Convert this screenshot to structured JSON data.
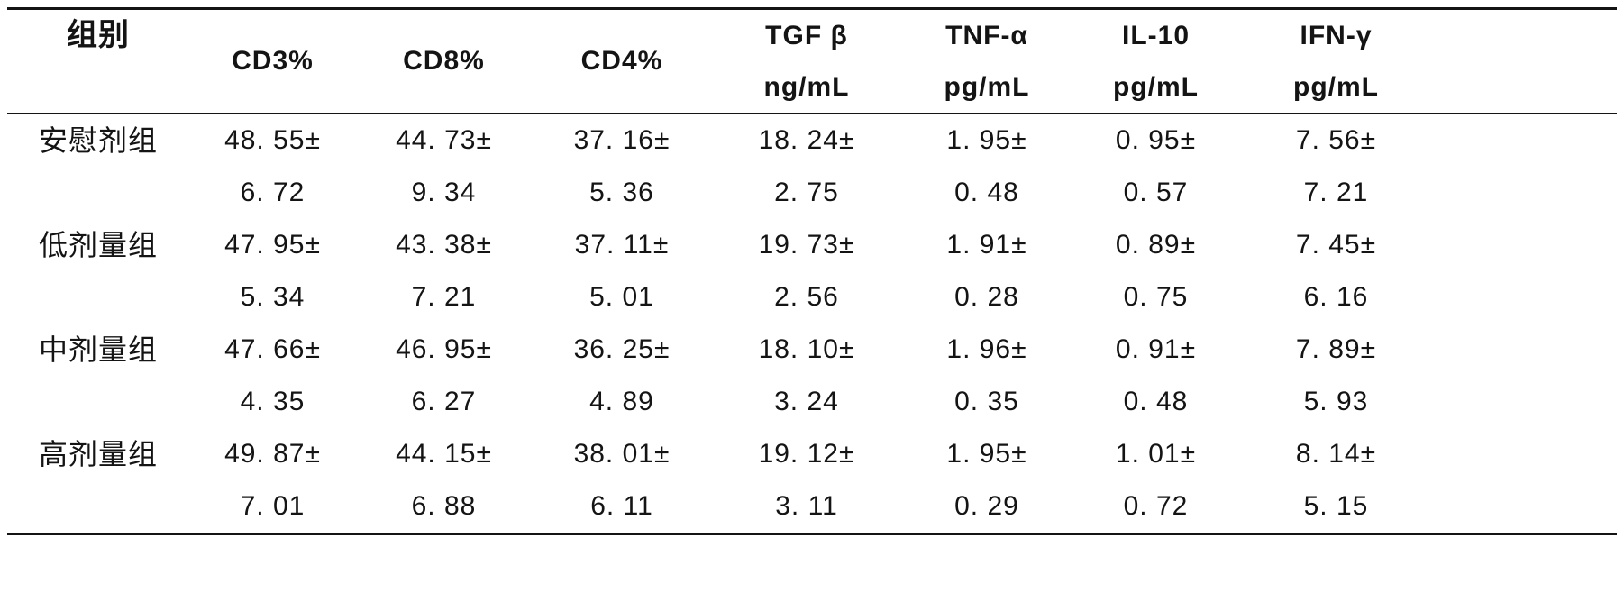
{
  "table": {
    "columns": [
      {
        "key": "group",
        "line1": "组别",
        "line2": ""
      },
      {
        "key": "cd3",
        "line1": "CD3%",
        "line2": ""
      },
      {
        "key": "cd8",
        "line1": "CD8%",
        "line2": ""
      },
      {
        "key": "cd4",
        "line1": "CD4%",
        "line2": ""
      },
      {
        "key": "tgfb",
        "line1": "TGF β",
        "line2": "ng/mL"
      },
      {
        "key": "tnfa",
        "line1": "TNF-α",
        "line2": "pg/mL"
      },
      {
        "key": "il10",
        "line1": "IL-10",
        "line2": "pg/mL"
      },
      {
        "key": "ifng",
        "line1": "IFN-γ",
        "line2": "pg/mL"
      }
    ],
    "rows": [
      {
        "group": "安慰剂组",
        "values": [
          {
            "mean": "48. 55±",
            "sd": "6. 72"
          },
          {
            "mean": "44. 73±",
            "sd": "9. 34"
          },
          {
            "mean": "37. 16±",
            "sd": "5. 36"
          },
          {
            "mean": "18. 24±",
            "sd": "2. 75"
          },
          {
            "mean": "1. 95±",
            "sd": "0. 48"
          },
          {
            "mean": "0. 95±",
            "sd": "0. 57"
          },
          {
            "mean": "7. 56±",
            "sd": "7. 21"
          }
        ]
      },
      {
        "group": "低剂量组",
        "values": [
          {
            "mean": "47. 95±",
            "sd": "5. 34"
          },
          {
            "mean": "43. 38±",
            "sd": "7. 21"
          },
          {
            "mean": "37. 11±",
            "sd": "5. 01"
          },
          {
            "mean": "19. 73±",
            "sd": "2. 56"
          },
          {
            "mean": "1. 91±",
            "sd": "0. 28"
          },
          {
            "mean": "0. 89±",
            "sd": "0. 75"
          },
          {
            "mean": "7. 45±",
            "sd": "6. 16"
          }
        ]
      },
      {
        "group": "中剂量组",
        "values": [
          {
            "mean": "47. 66±",
            "sd": "4. 35"
          },
          {
            "mean": "46. 95±",
            "sd": "6. 27"
          },
          {
            "mean": "36. 25±",
            "sd": "4. 89"
          },
          {
            "mean": "18. 10±",
            "sd": "3. 24"
          },
          {
            "mean": "1. 96±",
            "sd": "0. 35"
          },
          {
            "mean": "0. 91±",
            "sd": "0. 48"
          },
          {
            "mean": "7. 89±",
            "sd": "5. 93"
          }
        ]
      },
      {
        "group": "高剂量组",
        "values": [
          {
            "mean": "49. 87±",
            "sd": "7. 01"
          },
          {
            "mean": "44. 15±",
            "sd": "6. 88"
          },
          {
            "mean": "38. 01±",
            "sd": "6. 11"
          },
          {
            "mean": "19. 12±",
            "sd": "3. 11"
          },
          {
            "mean": "1. 95±",
            "sd": "0. 29"
          },
          {
            "mean": "1. 01±",
            "sd": "0. 72"
          },
          {
            "mean": "8. 14±",
            "sd": "5. 15"
          }
        ]
      }
    ]
  },
  "chart_data": {
    "type": "table",
    "columns": [
      "组别",
      "CD3%",
      "CD8%",
      "CD4%",
      "TGF β ng/mL",
      "TNF-α pg/mL",
      "IL-10 pg/mL",
      "IFN-γ pg/mL"
    ],
    "rows": [
      [
        "安慰剂组",
        "48.55±6.72",
        "44.73±9.34",
        "37.16±5.36",
        "18.24±2.75",
        "1.95±0.48",
        "0.95±0.57",
        "7.56±7.21"
      ],
      [
        "低剂量组",
        "47.95±5.34",
        "43.38±7.21",
        "37.11±5.01",
        "19.73±2.56",
        "1.91±0.28",
        "0.89±0.75",
        "7.45±6.16"
      ],
      [
        "中剂量组",
        "47.66±4.35",
        "46.95±6.27",
        "36.25±4.89",
        "18.10±3.24",
        "1.96±0.35",
        "0.91±0.48",
        "7.89±5.93"
      ],
      [
        "高剂量组",
        "49.87±7.01",
        "44.15±6.88",
        "38.01±6.11",
        "19.12±3.11",
        "1.95±0.29",
        "1.01±0.72",
        "8.14±5.15"
      ]
    ]
  }
}
